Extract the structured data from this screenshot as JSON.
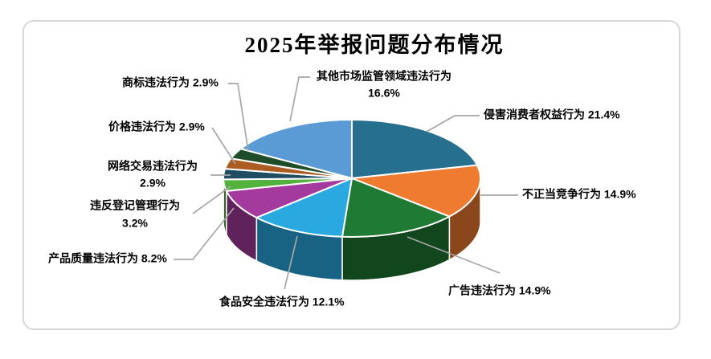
{
  "title": "2025年举报问题分布情况",
  "chart_data": {
    "type": "pie",
    "title": "2025年举报问题分布情况",
    "is_3d": true,
    "start_angle_deg": 0,
    "direction": "clockwise",
    "legend_position": "none",
    "unit": "%",
    "leader_line_color": "#A6A6A6",
    "card_border_color": "#D7D7D7",
    "slices": [
      {
        "label": "侵害消费者权益行为",
        "value": 21.4,
        "color": "#266F8E"
      },
      {
        "label": "不正当竞争行为",
        "value": 14.9,
        "color": "#EE7B30"
      },
      {
        "label": "广告违法行为",
        "value": 14.9,
        "color": "#1F7A33"
      },
      {
        "label": "食品安全违法行为",
        "value": 12.1,
        "color": "#2AA9E1"
      },
      {
        "label": "产品质量违法行为",
        "value": 8.2,
        "color": "#A43A9D"
      },
      {
        "label": "违反登记管理行为",
        "value": 3.2,
        "color": "#52B23C"
      },
      {
        "label": "网络交易违法行为",
        "value": 2.9,
        "color": "#204D62"
      },
      {
        "label": "价格违法行为",
        "value": 2.9,
        "color": "#AC5B21"
      },
      {
        "label": "商标违法行为",
        "value": 2.9,
        "color": "#1F4D2A"
      },
      {
        "label": "其他市场监管领域违法行为",
        "value": 16.6,
        "color": "#5B9BD5"
      }
    ]
  }
}
